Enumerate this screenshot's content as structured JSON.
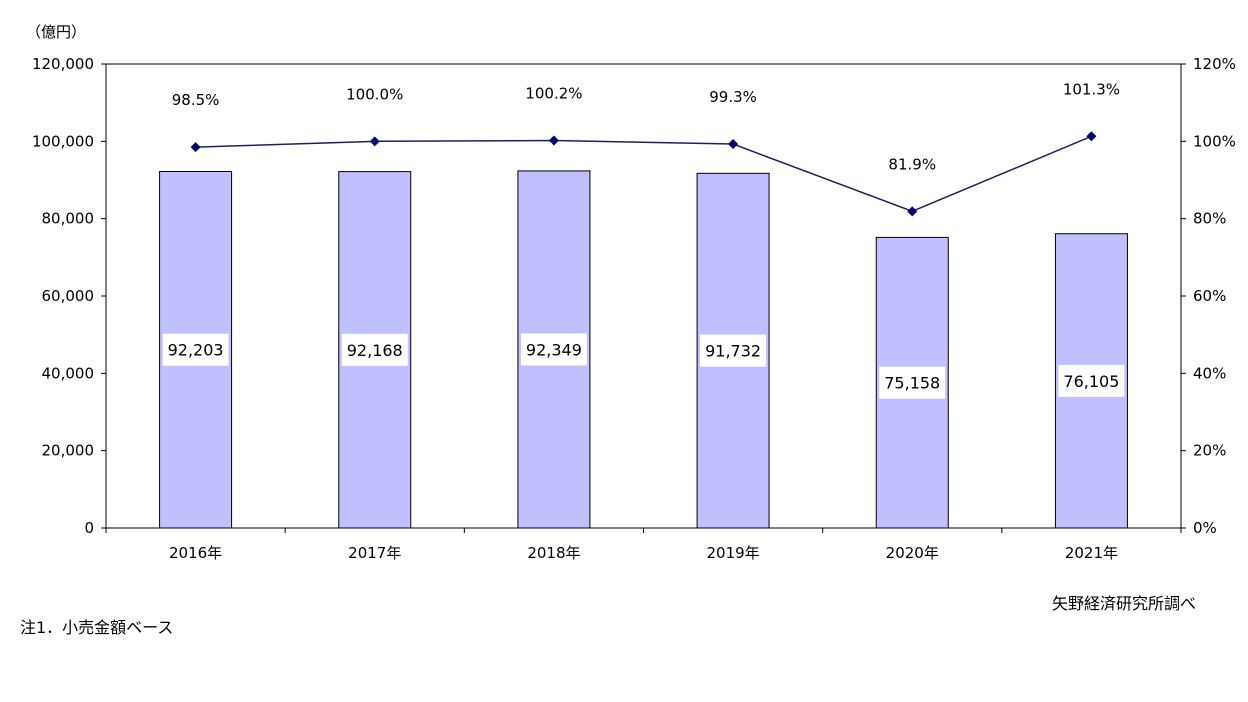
{
  "chart_data": {
    "type": "bar",
    "categories": [
      "2016年",
      "2017年",
      "2018年",
      "2019年",
      "2020年",
      "2021年"
    ],
    "series": [
      {
        "values": [
          92203,
          92168,
          92349,
          91732,
          75158,
          76105
        ],
        "color": "#c0c0ff",
        "axis": "left"
      },
      {
        "type": "line",
        "values": [
          98.5,
          100.0,
          100.2,
          99.3,
          81.9,
          101.3
        ],
        "color": "#1f1f66",
        "axis": "right"
      }
    ],
    "bar_labels": [
      "92,203",
      "92,168",
      "92,349",
      "91,732",
      "75,158",
      "76,105"
    ],
    "line_labels": [
      "98.5%",
      "100.0%",
      "100.2%",
      "99.3%",
      "81.9%",
      "101.3%"
    ],
    "y_unit": "（億円）",
    "ylim": [
      0,
      120000
    ],
    "y_ticks": [
      "0",
      "20,000",
      "40,000",
      "60,000",
      "80,000",
      "100,000",
      "120,000"
    ],
    "y2lim": [
      0,
      120
    ],
    "y2_ticks": [
      "0%",
      "20%",
      "40%",
      "60%",
      "80%",
      "100%",
      "120%"
    ],
    "grid": false
  },
  "notes": {
    "source": "矢野経済研究所調べ",
    "footnote": "注1．小売金額ベース"
  }
}
